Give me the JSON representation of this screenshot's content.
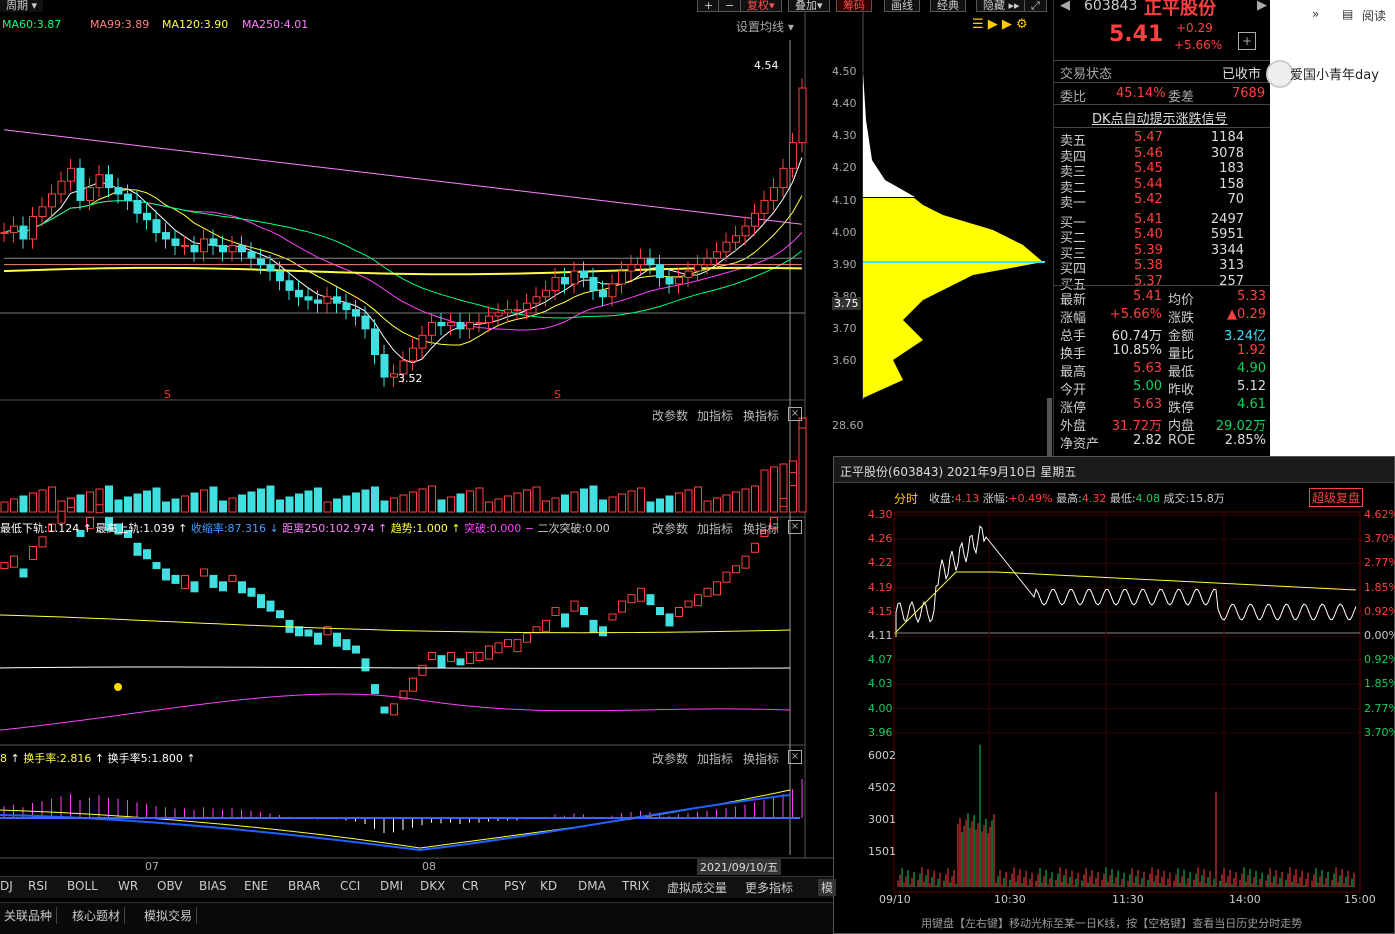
{
  "toolbar": {
    "period": "周期",
    "plus": "+",
    "minus": "−",
    "fuquan": "复权",
    "diejia": "叠加",
    "choumai": "筹码",
    "huaxian": "画线",
    "jingdian": "经典",
    "yincang": "隐藏"
  },
  "ma": {
    "ma60": "MA60:3.87",
    "ma99": "MA99:3.89",
    "ma120": "MA120:3.90",
    "ma250": "MA250:4.01",
    "settings": "设置均线"
  },
  "price_axis": [
    "4.50",
    "4.40",
    "4.30",
    "4.20",
    "4.10",
    "4.00",
    "3.90",
    "3.80",
    "3.75",
    "3.70",
    "3.60"
  ],
  "annotations": {
    "high": "4.54",
    "low": "3.52",
    "mark_s": "S"
  },
  "panels": {
    "vol_max": "28.60",
    "change_param": "改参数",
    "add_ind": "加指标",
    "swap_ind": "换指标",
    "ind1": {
      "l1": "最低下轨:1.124",
      "l2": "最高上轨:1.039",
      "l3": "收缩率:87.316",
      "l4": "距离250:102.974",
      "l5": "趋势:1.000",
      "l6": "突破:0.000",
      "l7": "二次突破:0.00"
    },
    "ind2": {
      "l1": "8",
      "l2": "换手率:2.816",
      "l3": "换手率5:1.800"
    }
  },
  "xaxis": {
    "m7": "07",
    "m8": "08",
    "date": "2021/09/10/五"
  },
  "tabs": [
    "DJ",
    "RSI",
    "BOLL",
    "WR",
    "OBV",
    "BIAS",
    "ENE",
    "BRAR",
    "CCI",
    "DMI",
    "DKX",
    "CR",
    "PSY",
    "KD",
    "DMA",
    "TRIX",
    "虚拟成交量",
    "更多指标",
    "模"
  ],
  "bottom_tabs": [
    "关联品种",
    "核心题材",
    "模拟交易"
  ],
  "quote": {
    "code": "603843",
    "name": "正平股份",
    "price": "5.41",
    "chg": "+0.29",
    "pct": "+5.66%",
    "status_label": "交易状态",
    "status": "已收市",
    "weibi_label": "委比",
    "weibi": "45.14%",
    "weicha_label": "委差",
    "weicha": "7689",
    "signal": "DK点自动提示涨跌信号",
    "sells": [
      {
        "l": "卖五",
        "p": "5.47",
        "v": "1184"
      },
      {
        "l": "卖四",
        "p": "5.46",
        "v": "3078"
      },
      {
        "l": "卖三",
        "p": "5.45",
        "v": "183"
      },
      {
        "l": "卖二",
        "p": "5.44",
        "v": "158"
      },
      {
        "l": "卖一",
        "p": "5.42",
        "v": "70"
      }
    ],
    "buys": [
      {
        "l": "买一",
        "p": "5.41",
        "v": "2497"
      },
      {
        "l": "买二",
        "p": "5.40",
        "v": "5951"
      },
      {
        "l": "买三",
        "p": "5.39",
        "v": "3344"
      },
      {
        "l": "买四",
        "p": "5.38",
        "v": "313"
      },
      {
        "l": "买五",
        "p": "5.37",
        "v": "257"
      }
    ],
    "stats": [
      {
        "a": "最新",
        "av": "5.41",
        "ac": "red",
        "b": "均价",
        "bv": "5.33",
        "bc": "red"
      },
      {
        "a": "涨幅",
        "av": "+5.66%",
        "ac": "red",
        "b": "涨跌",
        "bv": "▲0.29",
        "bc": "red"
      },
      {
        "a": "总手",
        "av": "60.74万",
        "ac": "wht",
        "b": "金额",
        "bv": "3.24亿",
        "bc": "cyan"
      },
      {
        "a": "换手",
        "av": "10.85%",
        "ac": "wht",
        "b": "量比",
        "bv": "1.92",
        "bc": "red"
      },
      {
        "a": "最高",
        "av": "5.63",
        "ac": "red",
        "b": "最低",
        "bv": "4.90",
        "bc": "grn"
      },
      {
        "a": "今开",
        "av": "5.00",
        "ac": "grn",
        "b": "昨收",
        "bv": "5.12",
        "bc": "wht"
      },
      {
        "a": "涨停",
        "av": "5.63",
        "ac": "red",
        "b": "跌停",
        "bv": "4.61",
        "bc": "grn"
      },
      {
        "a": "外盘",
        "av": "31.72万",
        "ac": "red",
        "b": "内盘",
        "bv": "29.02万",
        "bc": "grn"
      },
      {
        "a": "净资产",
        "av": "2.82",
        "ac": "wht",
        "b": "ROE",
        "bv": "2.85%",
        "bc": "wht"
      }
    ]
  },
  "side": {
    "read": "阅读",
    "user": "爱国小青年day"
  },
  "intraday": {
    "title": "正平股份(603843) 2021年9月10日 星期五",
    "fenshi": "分时",
    "close_lbl": "收盘:",
    "close": "4.13",
    "amp_lbl": "涨幅:",
    "amp": "+0.49%",
    "high_lbl": "最高:",
    "high": "4.32",
    "low_lbl": "最低:",
    "low": "4.08",
    "vol_lbl": "成交:",
    "vol": "15.8万",
    "badge": "超级复盘",
    "left_axis": [
      "4.30",
      "4.26",
      "4.22",
      "4.19",
      "4.15",
      "4.11",
      "4.07",
      "4.03",
      "4.00",
      "3.96"
    ],
    "right_axis": [
      "4.62%",
      "3.70%",
      "2.77%",
      "1.85%",
      "0.92%",
      "0.00%",
      "0.92%",
      "1.85%",
      "2.77%",
      "3.70%"
    ],
    "vol_axis": [
      "6002",
      "4502",
      "3001",
      "1501"
    ],
    "time_axis": [
      "09/10",
      "10:30",
      "11:30",
      "14:00",
      "15:00"
    ],
    "hint": "用键盘【左右键】移动光标至某一日K线，按【空格键】查看当日历史分时走势"
  }
}
